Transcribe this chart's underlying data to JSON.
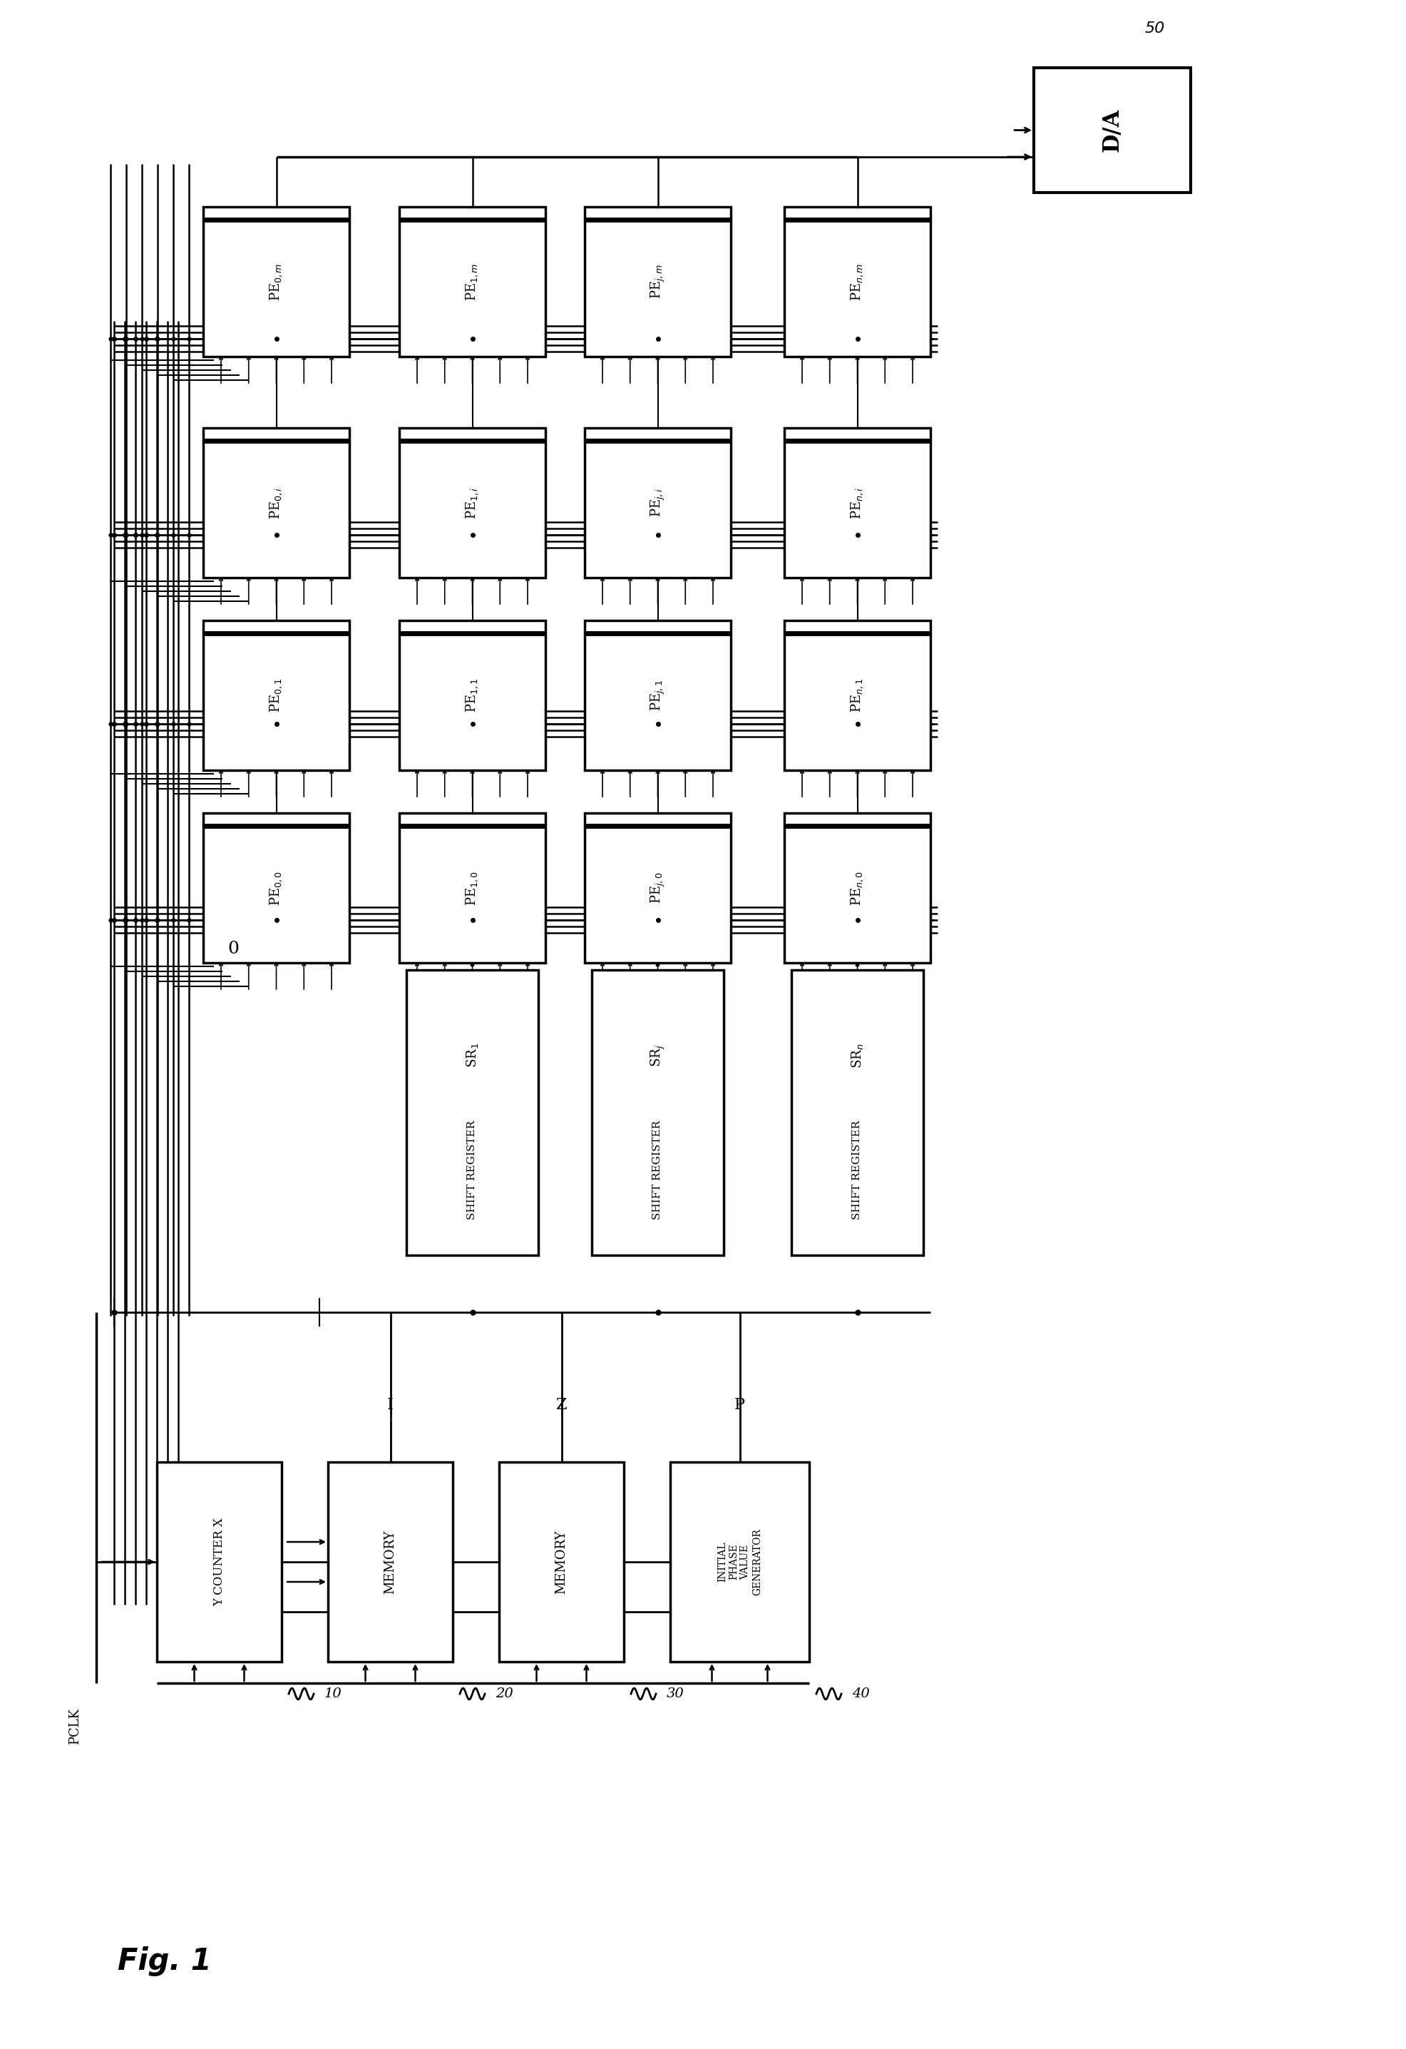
{
  "fig_width": 19.72,
  "fig_height": 28.73,
  "bg_color": "#ffffff",
  "lc": "#000000",
  "pe_labels": [
    [
      "PE$_{0,m}$",
      "PE$_{1,m}$",
      "PE$_{j,m}$",
      "PE$_{n,m}$"
    ],
    [
      "PE$_{0,i}$",
      "PE$_{1,i}$",
      "PE$_{j,i}$",
      "PE$_{n,i}$"
    ],
    [
      "PE$_{0,1}$",
      "PE$_{1,1}$",
      "PE$_{j,1}$",
      "PE$_{n,1}$"
    ],
    [
      "PE$_{0,0}$",
      "PE$_{1,0}$",
      "PE$_{j,0}$",
      "PE$_{n,0}$"
    ]
  ],
  "sr_labels": [
    "SR$_1$",
    "SR$_j$",
    "SR$_n$"
  ],
  "sr_sublabel": "SHIFT REGISTER",
  "mem1_label": "MEMORY",
  "mem2_label": "MEMORY",
  "counter_label": "Y COUNTER X",
  "ipg_label": "INITIAL\nPHASE\nVALUE\nGENERATOR",
  "da_label": "D/A",
  "pclk_label": "PCLK",
  "fig_label": "Fig. 1",
  "zero_label": "0",
  "ref_numbers": {
    "10": "10",
    "20": "20",
    "30": "30",
    "40": "40",
    "50": "50"
  },
  "signal_I": "I",
  "signal_Z": "Z",
  "signal_P": "P"
}
